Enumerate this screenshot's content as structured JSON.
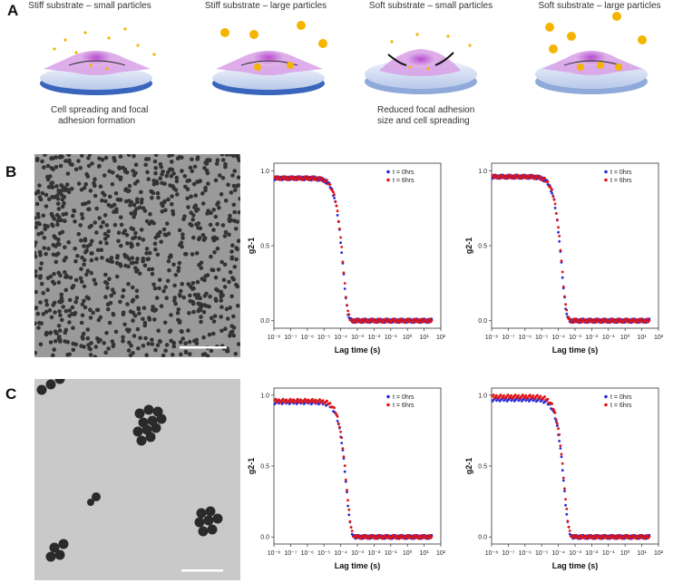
{
  "panels": {
    "a": "A",
    "b": "B",
    "c": "C"
  },
  "panel_a": {
    "captions": [
      "Stiff substrate – small particles",
      "Stiff substrate – large particles",
      "Soft substrate – small particles",
      "Soft substrate – large particles"
    ],
    "notes": {
      "stiff_small_line1": "Cell spreading and focal",
      "stiff_small_line2": "adhesion formation",
      "soft_small_line1": "Reduced focal adhesion",
      "soft_small_line2": "size and cell spreading"
    },
    "colors": {
      "particle": "#f5b400",
      "cell": "#c77dd6",
      "substrate": "#3f6fc2"
    }
  },
  "chart_data": [
    {
      "id": "b1",
      "type": "scatter",
      "xlabel": "Lag time (s)",
      "ylabel": "g2-1",
      "xscale": "log",
      "xlim": [
        1e-08,
        100
      ],
      "ylim": [
        -0.05,
        1.05
      ],
      "xticklabels": [
        "10⁻⁸",
        "10⁻⁷",
        "10⁻⁶",
        "10⁻⁵",
        "10⁻⁴",
        "10⁻³",
        "10⁻²",
        "10⁻¹",
        "10⁰",
        "10¹",
        "10²"
      ],
      "yticklabels": [
        "0.0",
        "0.5",
        "1.0"
      ],
      "legend": "top-right",
      "decay_time": 0.00014,
      "series": [
        {
          "name": "t = 0hrs",
          "color": "#2a2ad8",
          "y_start": 0.95
        },
        {
          "name": "t = 6hrs",
          "color": "#e01414",
          "y_start": 0.95
        }
      ]
    },
    {
      "id": "b2",
      "type": "scatter",
      "xlabel": "Lag time (s)",
      "ylabel": "g2-1",
      "xscale": "log",
      "xlim": [
        1e-08,
        100
      ],
      "ylim": [
        -0.05,
        1.05
      ],
      "xticklabels": [
        "10⁻⁸",
        "10⁻⁷",
        "10⁻⁶",
        "10⁻⁵",
        "10⁻⁴",
        "10⁻³",
        "10⁻²",
        "10⁻¹",
        "10⁰",
        "10¹",
        "10²"
      ],
      "yticklabels": [
        "0.0",
        "0.5",
        "1.0"
      ],
      "legend": "top-right",
      "decay_time": 0.00016,
      "series": [
        {
          "name": "t = 0hrs",
          "color": "#2a2ad8",
          "y_start": 0.96
        },
        {
          "name": "t = 6hrs",
          "color": "#e01414",
          "y_start": 0.96
        }
      ]
    },
    {
      "id": "c1",
      "type": "scatter",
      "xlabel": "Lag time (s)",
      "ylabel": "g2-1",
      "xscale": "log",
      "xlim": [
        1e-08,
        100
      ],
      "ylim": [
        -0.05,
        1.05
      ],
      "xticklabels": [
        "10⁻⁸",
        "10⁻⁷",
        "10⁻⁶",
        "10⁻⁵",
        "10⁻⁴",
        "10⁻³",
        "10⁻²",
        "10⁻¹",
        "10⁰",
        "10¹",
        "10²"
      ],
      "yticklabels": [
        "0.0",
        "0.5",
        "1.0"
      ],
      "legend": "top-right",
      "decay_time": 0.00022,
      "series": [
        {
          "name": "t = 0hrs",
          "color": "#2a2ad8",
          "y_start": 0.95
        },
        {
          "name": "t = 6hrs",
          "color": "#e01414",
          "y_start": 0.96
        }
      ]
    },
    {
      "id": "c2",
      "type": "scatter",
      "xlabel": "Lag time (s)",
      "ylabel": "g2-1",
      "xscale": "log",
      "xlim": [
        1e-08,
        100
      ],
      "ylim": [
        -0.05,
        1.05
      ],
      "xticklabels": [
        "10⁻⁸",
        "10⁻⁷",
        "10⁻⁶",
        "10⁻⁵",
        "10⁻⁴",
        "10⁻³",
        "10⁻²",
        "10⁻¹",
        "10⁰",
        "10¹",
        "10²"
      ],
      "yticklabels": [
        "0.0",
        "0.5",
        "1.0"
      ],
      "legend": "top-right",
      "decay_time": 0.00022,
      "series": [
        {
          "name": "t = 0hrs",
          "color": "#2a2ad8",
          "y_start": 0.97
        },
        {
          "name": "t = 6hrs",
          "color": "#e01414",
          "y_start": 0.99
        }
      ]
    }
  ]
}
